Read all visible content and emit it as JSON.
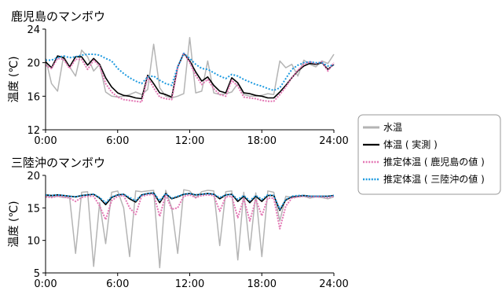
{
  "chart_data": [
    {
      "type": "line",
      "title": "鹿児島のマンボウ",
      "ylabel": "温度 (℃)",
      "xlabel": "",
      "ylim": [
        12,
        24
      ],
      "yticks": [
        12,
        16,
        20,
        24
      ],
      "xlim": [
        0,
        24
      ],
      "xticks": [
        "0:00",
        "6:00",
        "12:00",
        "18:00",
        "24:00"
      ],
      "x": [
        0,
        0.5,
        1,
        1.5,
        2,
        2.5,
        3,
        3.5,
        4,
        4.5,
        5,
        5.5,
        6,
        6.5,
        7,
        7.5,
        8,
        8.5,
        9,
        9.5,
        10,
        10.5,
        11,
        11.5,
        12,
        12.5,
        13,
        13.5,
        14,
        14.5,
        15,
        15.5,
        16,
        16.5,
        17,
        17.5,
        18,
        18.5,
        19,
        19.5,
        20,
        20.5,
        21,
        21.5,
        22,
        22.5,
        23,
        23.5,
        24
      ],
      "series": [
        {
          "name": "水温",
          "color": "#b4b4b4",
          "values": [
            20.5,
            17.5,
            16.6,
            20.8,
            19.5,
            18.4,
            21.5,
            20.7,
            19.0,
            19.8,
            16.5,
            16.0,
            15.9,
            16.0,
            16.2,
            16.5,
            16.2,
            16.8,
            22.2,
            17.0,
            16.0,
            15.8,
            16.0,
            16.3,
            23.0,
            16.4,
            16.6,
            20.2,
            16.4,
            16.2,
            16.3,
            16.5,
            17.5,
            16.2,
            16.0,
            16.0,
            16.1,
            16.3,
            16.2,
            20.2,
            19.4,
            19.8,
            18.4,
            20.3,
            19.8,
            19.5,
            20.2,
            19.9,
            21.0
          ]
        },
        {
          "name": "体温(実測)",
          "color": "#000000",
          "values": [
            20.1,
            19.4,
            20.8,
            20.6,
            19.5,
            20.7,
            20.7,
            19.7,
            20.5,
            19.8,
            18.2,
            17.1,
            16.4,
            16.1,
            16.0,
            15.8,
            15.7,
            18.5,
            17.5,
            16.4,
            16.2,
            15.9,
            19.5,
            21.1,
            20.2,
            18.9,
            17.8,
            18.3,
            17.3,
            16.6,
            16.4,
            18.2,
            17.6,
            16.4,
            16.3,
            16.1,
            16.0,
            15.8,
            15.8,
            16.5,
            17.3,
            18.2,
            19.0,
            19.6,
            19.9,
            19.8,
            20.0,
            19.2,
            19.8
          ]
        },
        {
          "name": "推定体温(鹿児島の値)",
          "color": "#e377b4",
          "values": [
            19.7,
            19.3,
            20.5,
            20.4,
            19.3,
            20.4,
            20.4,
            19.2,
            20.3,
            19.6,
            17.5,
            16.5,
            15.9,
            15.6,
            15.5,
            15.4,
            15.3,
            18.3,
            17.0,
            15.9,
            15.7,
            15.6,
            19.4,
            21.2,
            20.0,
            18.5,
            17.4,
            18.0,
            16.9,
            16.2,
            16.0,
            17.9,
            17.2,
            15.9,
            15.8,
            15.7,
            15.5,
            15.4,
            15.4,
            16.2,
            17.1,
            18.2,
            19.1,
            19.8,
            20.1,
            19.9,
            20.1,
            19.0,
            20.0
          ]
        },
        {
          "name": "推定体温(三陸沖の値)",
          "color": "#1f9be0",
          "values": [
            20.3,
            20.3,
            20.6,
            20.8,
            20.6,
            20.7,
            20.9,
            21.0,
            21.0,
            20.9,
            20.5,
            20.2,
            19.3,
            18.7,
            18.2,
            17.8,
            17.5,
            18.3,
            18.4,
            17.9,
            17.5,
            17.3,
            19.5,
            21.1,
            20.5,
            19.8,
            19.3,
            19.2,
            18.8,
            18.4,
            18.1,
            18.6,
            18.4,
            18.0,
            17.7,
            17.4,
            17.2,
            16.9,
            16.7,
            17.0,
            18.1,
            19.2,
            19.7,
            20.0,
            20.1,
            20.0,
            20.0,
            19.6,
            19.7
          ]
        }
      ]
    },
    {
      "type": "line",
      "title": "三陸沖のマンボウ",
      "ylabel": "温度 (℃)",
      "xlabel": "",
      "ylim": [
        5,
        20
      ],
      "yticks": [
        5,
        10,
        15,
        20
      ],
      "xlim": [
        0,
        24
      ],
      "xticks": [
        "0:00",
        "6:00",
        "12:00",
        "18:00",
        "24:00"
      ],
      "x": [
        0,
        0.5,
        1,
        1.5,
        2,
        2.5,
        3,
        3.5,
        4,
        4.5,
        5,
        5.5,
        6,
        6.5,
        7,
        7.5,
        8,
        8.5,
        9,
        9.5,
        10,
        10.5,
        11,
        11.5,
        12,
        12.5,
        13,
        13.5,
        14,
        14.5,
        15,
        15.5,
        16,
        16.5,
        17,
        17.5,
        18,
        18.5,
        19,
        19.5,
        20,
        20.5,
        21,
        21.5,
        22,
        22.5,
        23,
        23.5,
        24
      ],
      "series": [
        {
          "name": "水温",
          "color": "#b4b4b4",
          "values": [
            16.8,
            16.7,
            16.8,
            16.6,
            16.6,
            8.0,
            17.4,
            17.5,
            6.0,
            15.8,
            9.5,
            17.4,
            17.6,
            15.0,
            7.5,
            17.6,
            17.5,
            17.6,
            17.7,
            5.8,
            17.7,
            15.0,
            8.0,
            17.8,
            17.6,
            16.5,
            17.5,
            17.7,
            17.6,
            9.2,
            17.5,
            17.6,
            7.0,
            17.4,
            8.5,
            17.3,
            7.5,
            17.6,
            17.4,
            13.0,
            16.8,
            16.6,
            16.7,
            16.8,
            16.5,
            16.7,
            16.6,
            16.4,
            16.7
          ]
        },
        {
          "name": "体温(実測)",
          "color": "#000000",
          "values": [
            17.0,
            16.9,
            17.0,
            16.9,
            16.8,
            16.7,
            16.9,
            17.0,
            17.1,
            16.5,
            15.5,
            16.6,
            17.0,
            17.1,
            16.4,
            15.9,
            17.0,
            17.2,
            17.3,
            15.8,
            17.2,
            16.4,
            16.7,
            17.1,
            17.2,
            17.0,
            17.1,
            17.2,
            17.1,
            16.4,
            17.0,
            17.1,
            16.0,
            16.8,
            15.8,
            16.8,
            16.0,
            16.9,
            16.9,
            14.6,
            16.2,
            16.7,
            16.8,
            16.9,
            16.8,
            16.8,
            16.8,
            16.8,
            16.9
          ]
        },
        {
          "name": "推定体温(鹿児島の値)",
          "color": "#e377b4",
          "values": [
            16.7,
            16.6,
            16.8,
            16.7,
            16.5,
            16.0,
            16.6,
            16.8,
            16.8,
            15.3,
            13.2,
            16.1,
            16.8,
            16.9,
            15.0,
            14.0,
            16.8,
            17.0,
            17.1,
            13.7,
            17.0,
            14.8,
            15.0,
            16.8,
            17.0,
            16.6,
            16.9,
            17.0,
            16.9,
            14.5,
            16.7,
            16.8,
            13.5,
            16.4,
            13.0,
            16.3,
            13.8,
            16.5,
            16.5,
            11.8,
            15.3,
            16.5,
            16.7,
            16.8,
            16.7,
            16.7,
            16.7,
            16.6,
            16.8
          ]
        },
        {
          "name": "推定体温(三陸沖の値)",
          "color": "#1f9be0",
          "values": [
            17.0,
            16.9,
            17.0,
            16.9,
            16.8,
            16.7,
            16.9,
            17.0,
            17.1,
            16.6,
            15.8,
            16.7,
            17.0,
            17.1,
            16.6,
            16.1,
            17.0,
            17.2,
            17.3,
            16.1,
            17.2,
            16.5,
            16.8,
            17.1,
            17.2,
            17.0,
            17.1,
            17.2,
            17.1,
            16.6,
            17.0,
            17.1,
            16.3,
            16.9,
            16.1,
            16.9,
            16.3,
            17.0,
            16.9,
            14.8,
            16.3,
            16.8,
            16.9,
            16.9,
            16.8,
            16.8,
            16.8,
            16.8,
            16.9
          ]
        }
      ]
    }
  ],
  "legend": {
    "items": [
      {
        "label": "水温",
        "color": "#b4b4b4",
        "style": "solid"
      },
      {
        "label": "体温 ( 実測 )",
        "color": "#000000",
        "style": "solid"
      },
      {
        "label": "推定体温 ( 鹿児島の値 )",
        "color": "#e377b4",
        "style": "dotted"
      },
      {
        "label": "推定体温 ( 三陸沖の値 )",
        "color": "#1f9be0",
        "style": "dotted"
      }
    ]
  }
}
